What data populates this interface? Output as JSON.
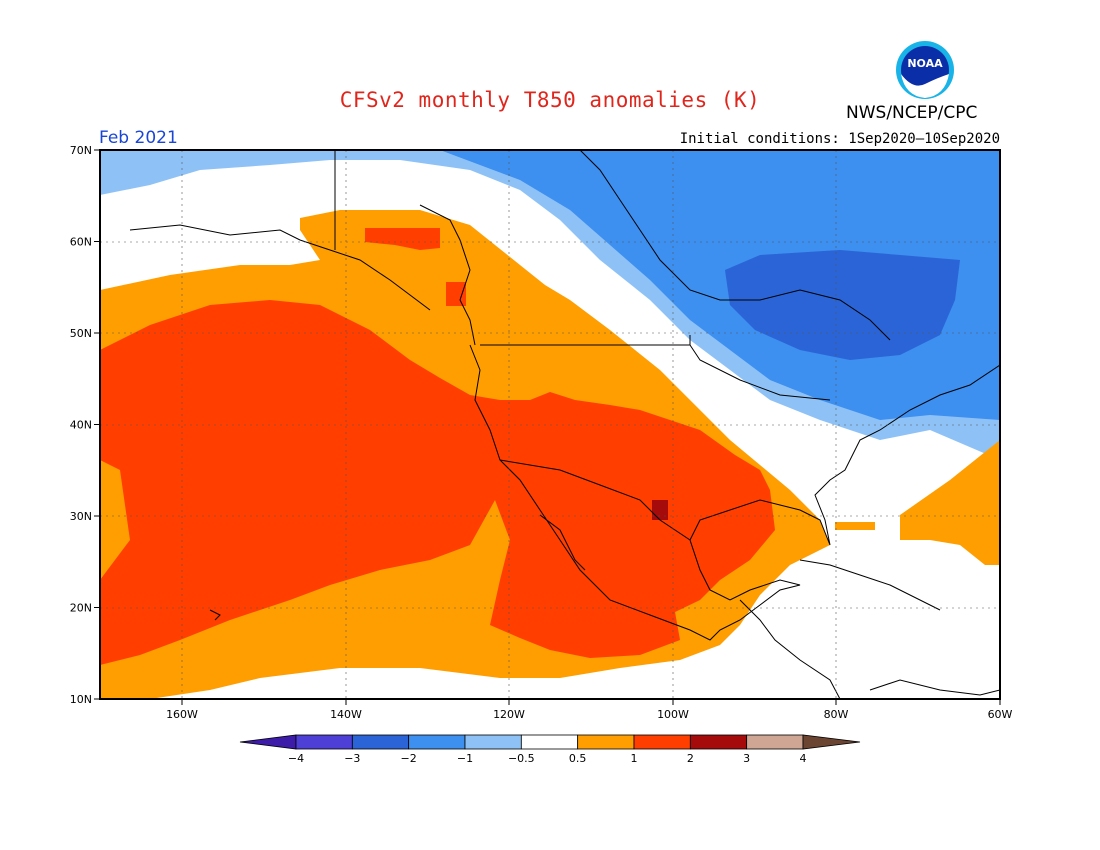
{
  "title": "CFSv2 monthly T850 anomalies (K)",
  "organization": "NWS/NCEP/CPC",
  "logo_text": "NOAA",
  "month_label": "Feb 2021",
  "initial_conditions": "Initial conditions: 1Sep2020–10Sep2020",
  "map": {
    "lon_range": [
      -170,
      -60
    ],
    "lat_range": [
      10,
      70
    ],
    "lon_ticks": [
      "160W",
      "140W",
      "120W",
      "100W",
      "80W",
      "60W"
    ],
    "lat_ticks": [
      "70N",
      "60N",
      "50N",
      "40N",
      "30N",
      "20N",
      "10N"
    ]
  },
  "colorbar": {
    "labels": [
      "−4",
      "−3",
      "−2",
      "−1",
      "−0.5",
      "0.5",
      "1",
      "2",
      "3",
      "4"
    ],
    "colors": [
      "#3c1ca8",
      "#4e3fd6",
      "#2a64d6",
      "#3d8ff0",
      "#8ec2f7",
      "#ffffff",
      "#ff9e00",
      "#ff3e00",
      "#a50b0b",
      "#cfa593",
      "#6b4532"
    ]
  },
  "anomaly_colors": {
    "light_blue": "#8ec2f7",
    "mid_blue": "#3d8ff0",
    "blue": "#2a64d6",
    "orange": "#ff9e00",
    "red_orange": "#ff3e00",
    "dark_red": "#a50b0b"
  }
}
